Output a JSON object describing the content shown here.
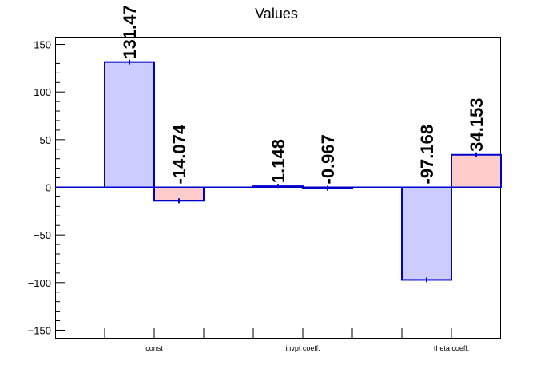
{
  "chart_data": {
    "type": "bar",
    "title": "Values",
    "xlabel": "",
    "ylabel": "",
    "ylim": [
      -158,
      158
    ],
    "yticks": [
      -150,
      -100,
      -50,
      0,
      50,
      100,
      150
    ],
    "ytick_labels": [
      "−150",
      "−100",
      "−50",
      "0",
      "50",
      "100",
      "150"
    ],
    "categories": [
      "const",
      "invpt coeff.",
      "theta coeff."
    ],
    "series": [
      {
        "values": [
          131.47,
          1.148,
          -97.168
        ],
        "labels": [
          "131.47",
          "1.148",
          "-97.168"
        ],
        "fill": "#ccccff",
        "stroke": "#0000cc"
      },
      {
        "values": [
          -14.074,
          -0.967,
          34.153
        ],
        "labels": [
          "-14.074",
          "-0.967",
          "34.153"
        ],
        "fill": "#ffcccc",
        "stroke": "#0000cc"
      }
    ],
    "grid": false,
    "legend": "none"
  }
}
